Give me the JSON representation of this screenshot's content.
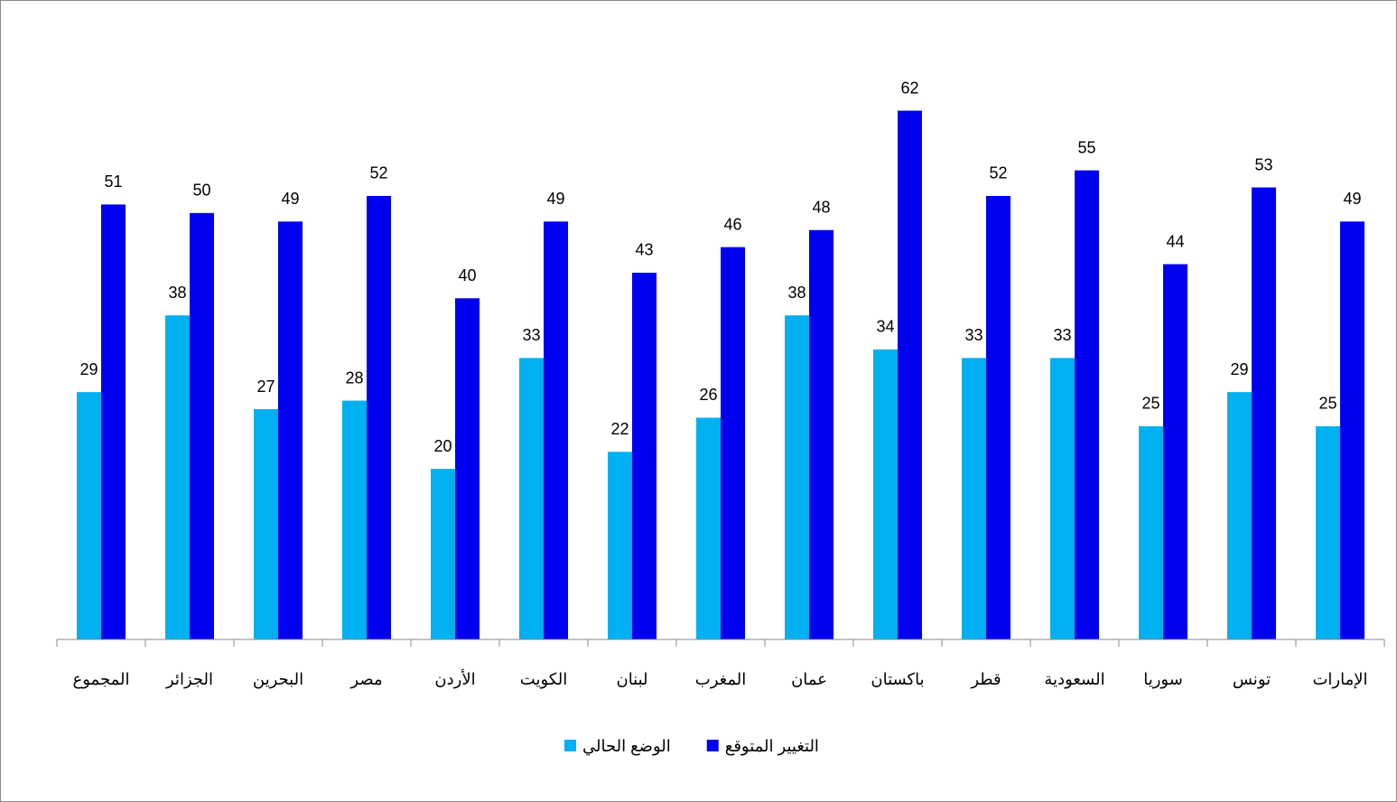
{
  "chart_data": {
    "type": "bar",
    "categories": [
      "المجموع",
      "الجزائر",
      "البحرين",
      "مصر",
      "الأردن",
      "الكويت",
      "لبنان",
      "المغرب",
      "عمان",
      "باكستان",
      "قطر",
      "السعودية",
      "سوريا",
      "تونس",
      "الإمارات"
    ],
    "series": [
      {
        "name": "الوضع الحالي",
        "color": "#00b0f0",
        "values": [
          29,
          38,
          27,
          28,
          20,
          33,
          22,
          26,
          38,
          34,
          33,
          33,
          25,
          29,
          25
        ]
      },
      {
        "name": "التغيير المتوقع",
        "color": "#0000f0",
        "values": [
          51,
          50,
          49,
          52,
          40,
          49,
          43,
          46,
          48,
          62,
          52,
          55,
          44,
          53,
          49
        ]
      }
    ],
    "ylim": [
      0,
      70
    ],
    "legend": "bottom"
  }
}
